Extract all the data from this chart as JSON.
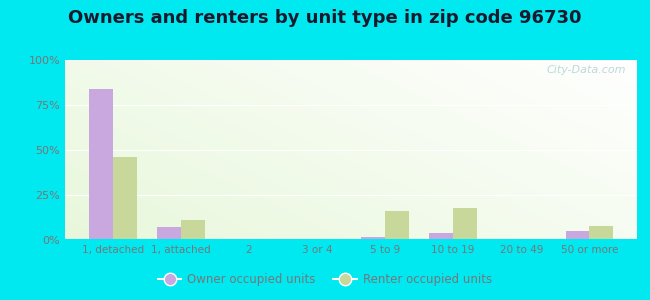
{
  "title": "Owners and renters by unit type in zip code 96730",
  "categories": [
    "1, detached",
    "1, attached",
    "2",
    "3 or 4",
    "5 to 9",
    "10 to 19",
    "20 to 49",
    "50 or more"
  ],
  "owner_values": [
    84,
    7,
    0,
    0,
    1.5,
    4,
    0,
    5
  ],
  "renter_values": [
    46,
    11,
    0,
    0,
    16,
    18,
    0,
    8
  ],
  "owner_color": "#c9a8e0",
  "renter_color": "#c8d89a",
  "background_top_color": "#e0f0f8",
  "background_bottom_color": "#d8ecc0",
  "outer_background": "#00e8f0",
  "ylim": [
    0,
    100
  ],
  "yticks": [
    0,
    25,
    50,
    75,
    100
  ],
  "ytick_labels": [
    "0%",
    "25%",
    "50%",
    "75%",
    "100%"
  ],
  "owner_label": "Owner occupied units",
  "renter_label": "Renter occupied units",
  "bar_width": 0.35,
  "title_fontsize": 13,
  "watermark": "City-Data.com",
  "tick_color": "#777777",
  "title_color": "#1a1a2e"
}
